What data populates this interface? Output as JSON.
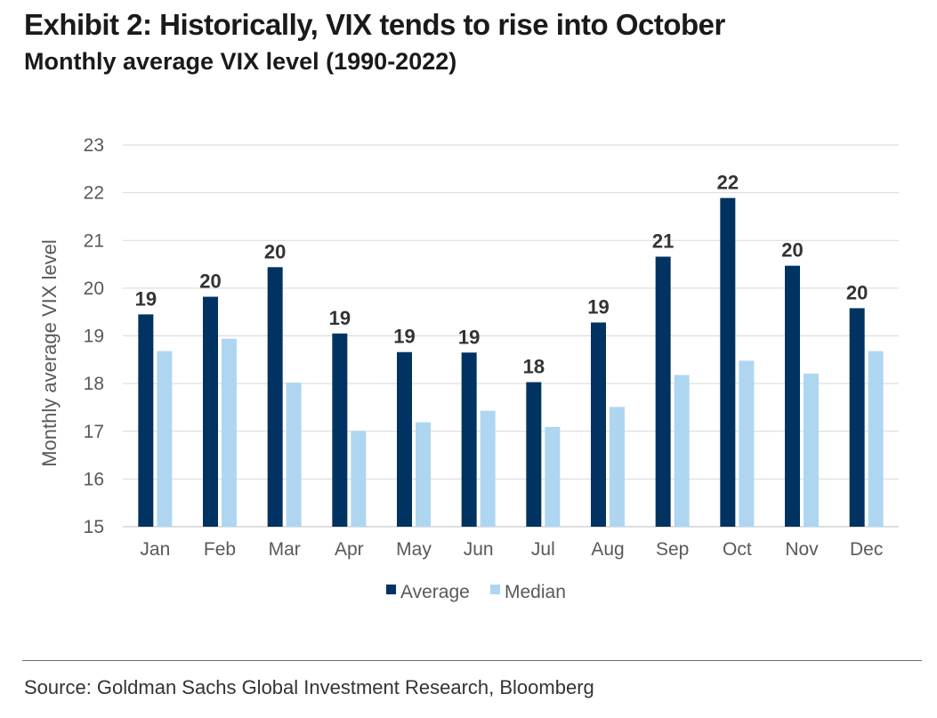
{
  "title": "Exhibit 2: Historically, VIX tends to rise into October",
  "subtitle": "Monthly average VIX level (1990-2022)",
  "source": "Source: Goldman Sachs Global Investment Research, Bloomberg",
  "chart_data": {
    "type": "bar",
    "categories": [
      "Jan",
      "Feb",
      "Mar",
      "Apr",
      "May",
      "Jun",
      "Jul",
      "Aug",
      "Sep",
      "Oct",
      "Nov",
      "Dec"
    ],
    "series": [
      {
        "name": "Average",
        "color": "#003361",
        "values": [
          19.45,
          19.82,
          20.44,
          19.05,
          18.66,
          18.65,
          18.03,
          19.28,
          20.66,
          21.89,
          20.47,
          19.58
        ],
        "data_labels": [
          "19",
          "20",
          "20",
          "19",
          "19",
          "19",
          "18",
          "19",
          "21",
          "22",
          "20",
          "20"
        ]
      },
      {
        "name": "Median",
        "color": "#aed6f1",
        "values": [
          18.68,
          18.94,
          18.02,
          17.01,
          17.19,
          17.43,
          17.09,
          17.51,
          18.18,
          18.48,
          18.21,
          18.68
        ]
      }
    ],
    "ylabel": "Monthly average VIX level",
    "xlabel": "",
    "ylim": [
      15,
      23
    ],
    "yticks": [
      15,
      16,
      17,
      18,
      19,
      20,
      21,
      22,
      23
    ],
    "grid": true,
    "legend": "bottom"
  }
}
